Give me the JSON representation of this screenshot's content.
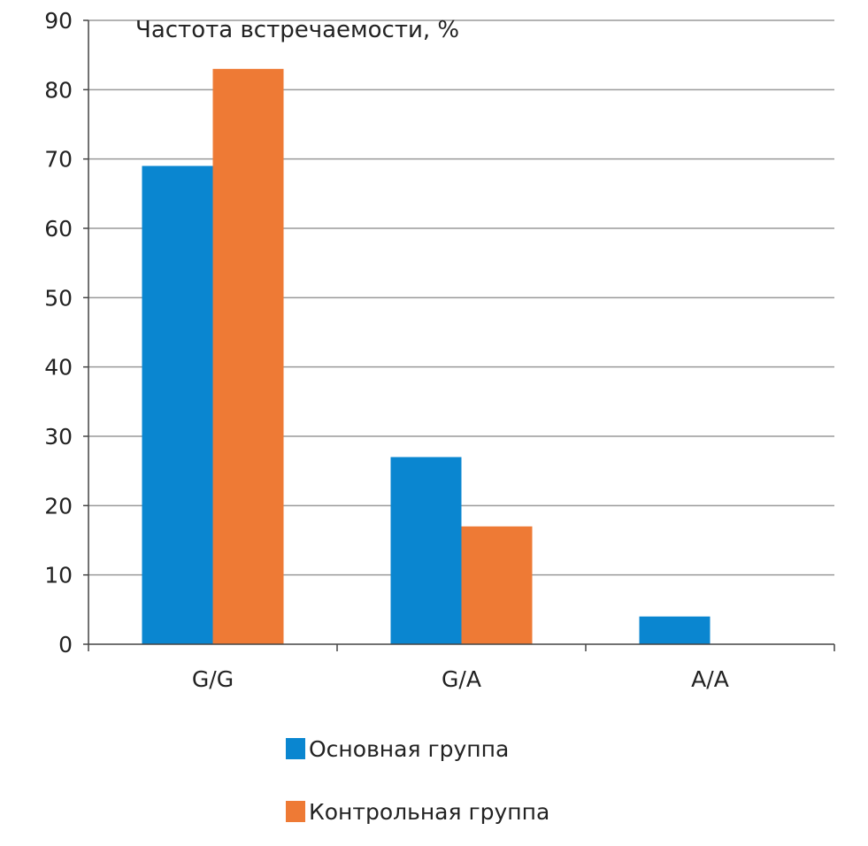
{
  "chart_data": {
    "type": "bar",
    "ylabel": "Частота встречаемости, %",
    "categories": [
      "G/G",
      "G/A",
      "A/A"
    ],
    "ylim": [
      0,
      90
    ],
    "yticks": [
      0,
      10,
      20,
      30,
      40,
      50,
      60,
      70,
      80,
      90
    ],
    "grid": true,
    "legend_position": "bottom",
    "series": [
      {
        "name": "Основная группа",
        "color": "#0a86d0",
        "values": [
          69,
          27,
          4
        ]
      },
      {
        "name": "Контрольная группа",
        "color": "#ee7a35",
        "values": [
          83,
          17,
          0
        ]
      }
    ]
  }
}
